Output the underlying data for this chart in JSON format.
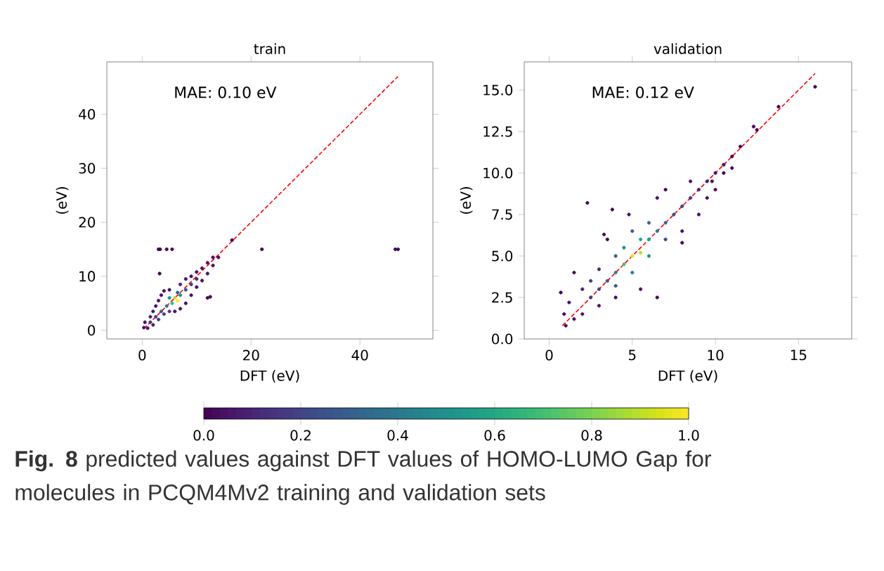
{
  "chart_data": [
    {
      "type": "scatter",
      "title": "train",
      "xlabel": "DFT (eV)",
      "ylabel": "(eV)",
      "marker": "circle",
      "xlim": [
        -6.5,
        53.4
      ],
      "ylim": [
        -1.6,
        49.7
      ],
      "xticks": [
        0,
        20,
        40
      ],
      "yticks": [
        0,
        10,
        20,
        30,
        40
      ],
      "clim": [
        0,
        1
      ],
      "cticks": [
        {
          "value": 0,
          "label": "0.0"
        },
        {
          "value": 0.2,
          "label": "0.2"
        },
        {
          "value": 0.4,
          "label": "0.4"
        },
        {
          "value": 0.6,
          "label": "0.6"
        },
        {
          "value": 0.8,
          "label": "0.8"
        },
        {
          "value": 1,
          "label": "1.0"
        }
      ],
      "annotations": [
        "MAE: 0.10 eV",
        "**Fig. 8** predicted values against DFT values of HOMO-LUMO Gap for molecules in PCQM4Mv2 training and validation sets"
      ],
      "series": [
        {
          "type": "scatter",
          "x": [
            0.3,
            0.5,
            1,
            1.5,
            2,
            2,
            3,
            2.5,
            3,
            3.5,
            4,
            5,
            4,
            5,
            6,
            7,
            8,
            9,
            10,
            11,
            12,
            13,
            14,
            13,
            12,
            11,
            10,
            9,
            8,
            7,
            6.5,
            5,
            6,
            6.5,
            5.5,
            7,
            4.5,
            3.5,
            8,
            9,
            10,
            2.5,
            1.5,
            3,
            3.3,
            4.5,
            5.5,
            22,
            46.5,
            47,
            3.2,
            12,
            12.5,
            16.5
          ],
          "values": [
            0.5,
            1.5,
            0.4,
            2.5,
            1,
            3.5,
            2,
            4.5,
            5.5,
            6.5,
            7.3,
            7.5,
            3,
            3.5,
            3.5,
            4,
            5,
            6.5,
            8,
            9.2,
            10.5,
            12,
            13.5,
            13.5,
            12.5,
            11.5,
            10.8,
            10,
            9.5,
            8.5,
            7,
            6,
            6,
            5.5,
            5,
            6.5,
            4.5,
            3.5,
            7.5,
            8.5,
            9.5,
            2.5,
            1.5,
            15,
            15,
            15,
            15,
            15,
            15,
            15,
            10.5,
            6,
            6.2,
            16.7
          ],
          "colors": [
            "#471164",
            "#471164",
            "#471164",
            "#482475",
            "#482475",
            "#471164",
            "#443983",
            "#471164",
            "#471164",
            "#471164",
            "#471164",
            "#471164",
            "#414487",
            "#443983",
            "#471164",
            "#471164",
            "#471164",
            "#471164",
            "#471164",
            "#471164",
            "#471164",
            "#471164",
            "#471164",
            "#471164",
            "#471164",
            "#471164",
            "#471164",
            "#471164",
            "#471164",
            "#482475",
            "#355f8d",
            "#21918c",
            "#bddf26",
            "#fde725",
            "#44bf70",
            "#21918c",
            "#2a788e",
            "#355f8d",
            "#3b528b",
            "#443983",
            "#482475",
            "#414487",
            "#443983",
            "#440154",
            "#440154",
            "#440154",
            "#440154",
            "#440154",
            "#440154",
            "#440154",
            "#440154",
            "#440154",
            "#440154",
            "#440154"
          ]
        },
        {
          "type": "line",
          "x": [
            0.3,
            47
          ],
          "values": [
            0.3,
            47
          ],
          "color": "#ff0000",
          "line_style": "dashed",
          "marker": "none"
        }
      ]
    },
    {
      "type": "scatter",
      "title": "validation",
      "xlabel": "DFT (eV)",
      "ylabel": "(eV)",
      "marker": "circle",
      "xlim": [
        -1.5,
        18.2
      ],
      "ylim": [
        0,
        16.7
      ],
      "xticks": [
        0,
        5,
        10,
        15
      ],
      "yticks": [
        {
          "value": 0,
          "label": "0.0"
        },
        {
          "value": 2.5,
          "label": "2.5"
        },
        {
          "value": 5,
          "label": "5.0"
        },
        {
          "value": 7.5,
          "label": "7.5"
        },
        {
          "value": 10,
          "label": "10.0"
        },
        {
          "value": 12.5,
          "label": "12.5"
        },
        {
          "value": 15,
          "label": "15.0"
        }
      ],
      "annotations": [
        "MAE: 0.12 eV"
      ],
      "series": [
        {
          "type": "scatter",
          "x": [
            1,
            0.9,
            0.7,
            1.2,
            1.5,
            2,
            1.5,
            2.3,
            2,
            2.5,
            3,
            3,
            3,
            3.5,
            3.5,
            4,
            4,
            4,
            4.5,
            4.5,
            5,
            5.5,
            5,
            5.5,
            6,
            6,
            4.8,
            5.5,
            6.5,
            6.5,
            7,
            7,
            7.5,
            6.5,
            7,
            8,
            8,
            8.5,
            8.5,
            9,
            9,
            9.5,
            9.5,
            10,
            10,
            10.5,
            10.5,
            11,
            11,
            11.5,
            12.3,
            12.5,
            13.8,
            16,
            3.8,
            3.3,
            8,
            9.8,
            2.5,
            6,
            5,
            4
          ],
          "values": [
            0.8,
            1.5,
            2.8,
            2.2,
            1.2,
            1.5,
            4,
            8.2,
            3,
            2.5,
            2,
            4.2,
            3,
            6,
            3.5,
            4,
            2.5,
            5,
            5.5,
            4.5,
            5,
            5.2,
            4,
            6,
            6,
            5,
            7.5,
            3,
            6.5,
            2.5,
            7,
            6,
            7.5,
            8.5,
            9,
            8,
            6.5,
            8.5,
            9.5,
            9,
            7.5,
            9.5,
            8.5,
            10,
            9,
            10.5,
            10,
            11,
            10.3,
            11.6,
            12.8,
            12.6,
            14,
            15.2,
            7.8,
            6.3,
            5.8,
            9.5,
            3.5,
            7,
            6.5,
            3.2
          ],
          "colors": [
            "#450559",
            "#450559",
            "#450559",
            "#471164",
            "#471164",
            "#471164",
            "#450559",
            "#450559",
            "#482475",
            "#443983",
            "#471164",
            "#482475",
            "#414487",
            "#450559",
            "#3b528b",
            "#25858e",
            "#471164",
            "#355f8d",
            "#21918c",
            "#44bf70",
            "#dfe318",
            "#bddf26",
            "#2a788e",
            "#22a884",
            "#1f9e89",
            "#21918c",
            "#471164",
            "#471164",
            "#2a788e",
            "#450559",
            "#355f8d",
            "#414487",
            "#3b528b",
            "#471164",
            "#450559",
            "#414487",
            "#471164",
            "#443983",
            "#471164",
            "#482475",
            "#471164",
            "#481c6e",
            "#471164",
            "#471164",
            "#471164",
            "#471164",
            "#46085c",
            "#46085c",
            "#46085c",
            "#450559",
            "#450559",
            "#450559",
            "#450559",
            "#450559",
            "#450559",
            "#450559",
            "#450559",
            "#46085c",
            "#443983",
            "#355f8d",
            "#355f8d",
            "#3b528b"
          ]
        },
        {
          "type": "line",
          "x": [
            0.8,
            16
          ],
          "values": [
            0.8,
            16
          ],
          "color": "#ff0000",
          "line_style": "dashed",
          "marker": "none"
        }
      ]
    }
  ]
}
